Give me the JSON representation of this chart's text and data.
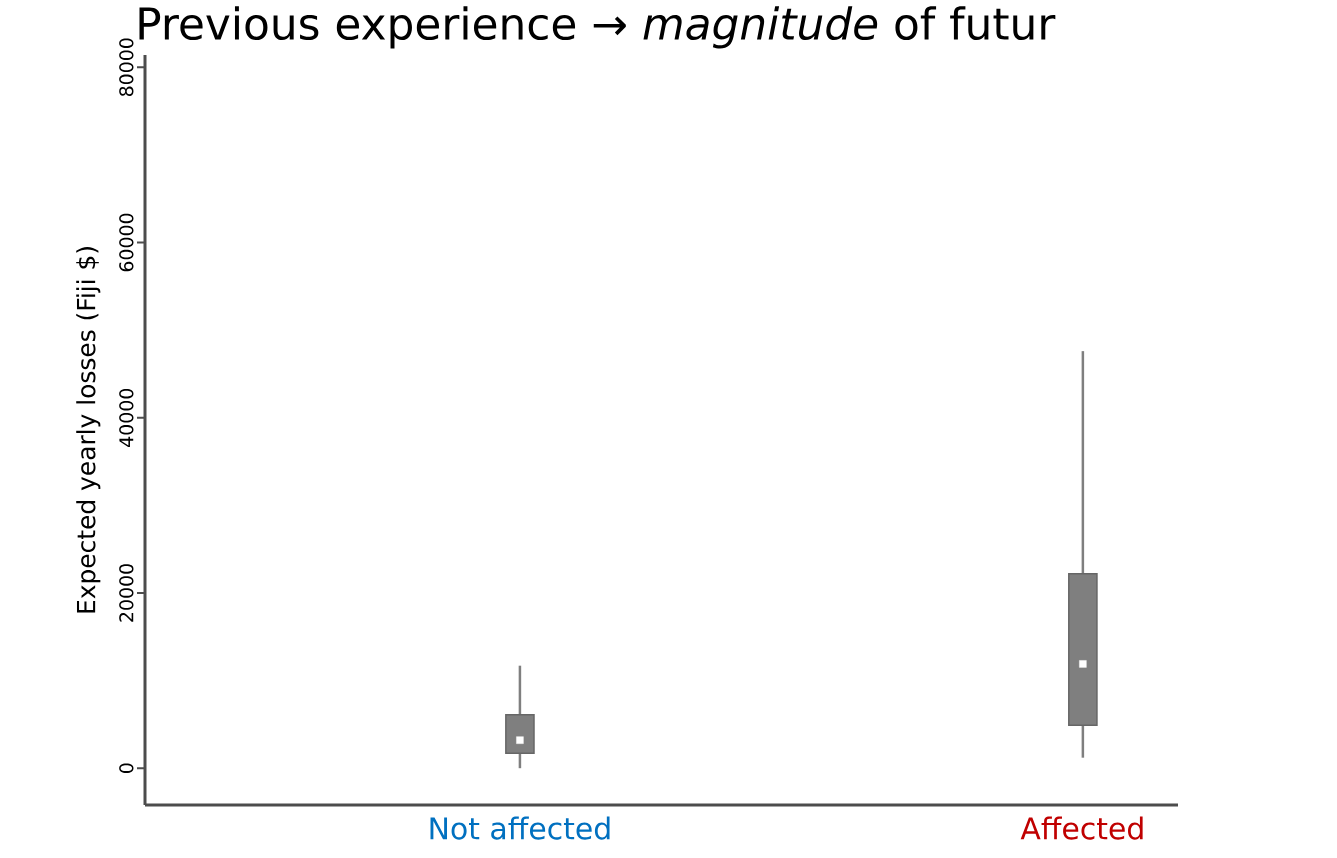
{
  "chart_data": {
    "type": "box",
    "title": "Previous experience → *magnitude* of futur",
    "ylabel": "Expected yearly losses (Fiji $)",
    "categories": [
      "Not affected",
      "Affected"
    ],
    "color": "#7f7f7f",
    "boxes": [
      {
        "low": 0,
        "q1": 1700,
        "median": 3200,
        "q3": 6100,
        "high": 11700
      },
      {
        "low": 1200,
        "q1": 4900,
        "median": 11900,
        "q3": 22200,
        "high": 47600
      }
    ],
    "ylim": [
      -4200,
      81400
    ],
    "yticks": [
      0,
      20000,
      40000,
      60000,
      80000
    ],
    "grid": false
  }
}
